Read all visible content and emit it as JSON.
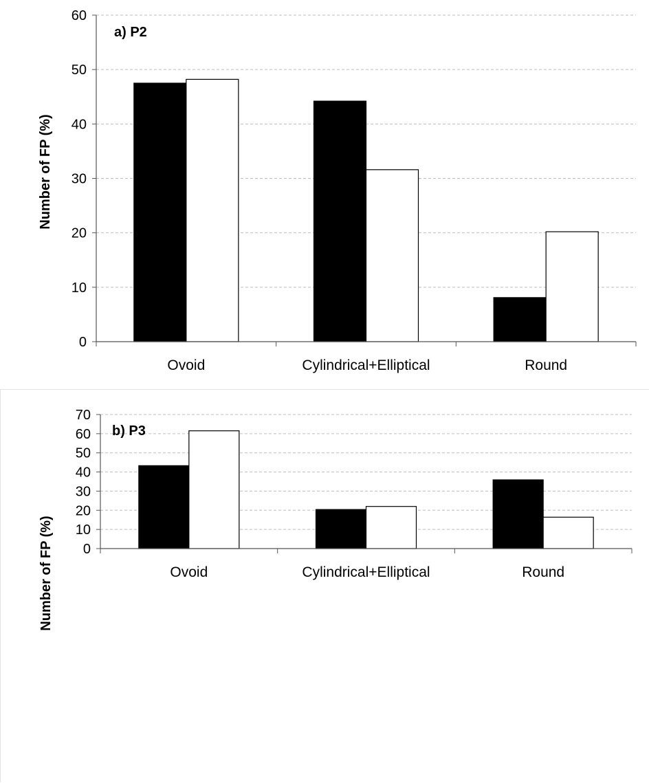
{
  "chart_data": [
    {
      "type": "bar",
      "title": "a) P2",
      "ylabel": "Number of FP (%)",
      "xlabel": "",
      "ylim": [
        0,
        60
      ],
      "yticks": [
        "0",
        "10",
        "20",
        "30",
        "40",
        "50",
        "60"
      ],
      "grid": true,
      "categories": [
        "Ovoid",
        "Cylindrical+Elliptical",
        "Round"
      ],
      "series": [
        {
          "color": "#000000",
          "values": [
            47.5,
            44.2,
            8.1
          ]
        },
        {
          "color": "#ffffff",
          "values": [
            48.2,
            31.6,
            20.2
          ]
        }
      ]
    },
    {
      "type": "bar",
      "title": "b) P3",
      "ylabel": "Number of FP (%)",
      "xlabel": "",
      "ylim": [
        0,
        70
      ],
      "yticks": [
        "0",
        "10",
        "20",
        "30",
        "40",
        "50",
        "60",
        "70"
      ],
      "grid": true,
      "categories": [
        "Ovoid",
        "Cylindrical+Elliptical",
        "Round"
      ],
      "series": [
        {
          "color": "#000000",
          "values": [
            43.3,
            20.4,
            35.9
          ]
        },
        {
          "color": "#ffffff",
          "values": [
            61.5,
            22.0,
            16.4
          ]
        }
      ]
    }
  ]
}
